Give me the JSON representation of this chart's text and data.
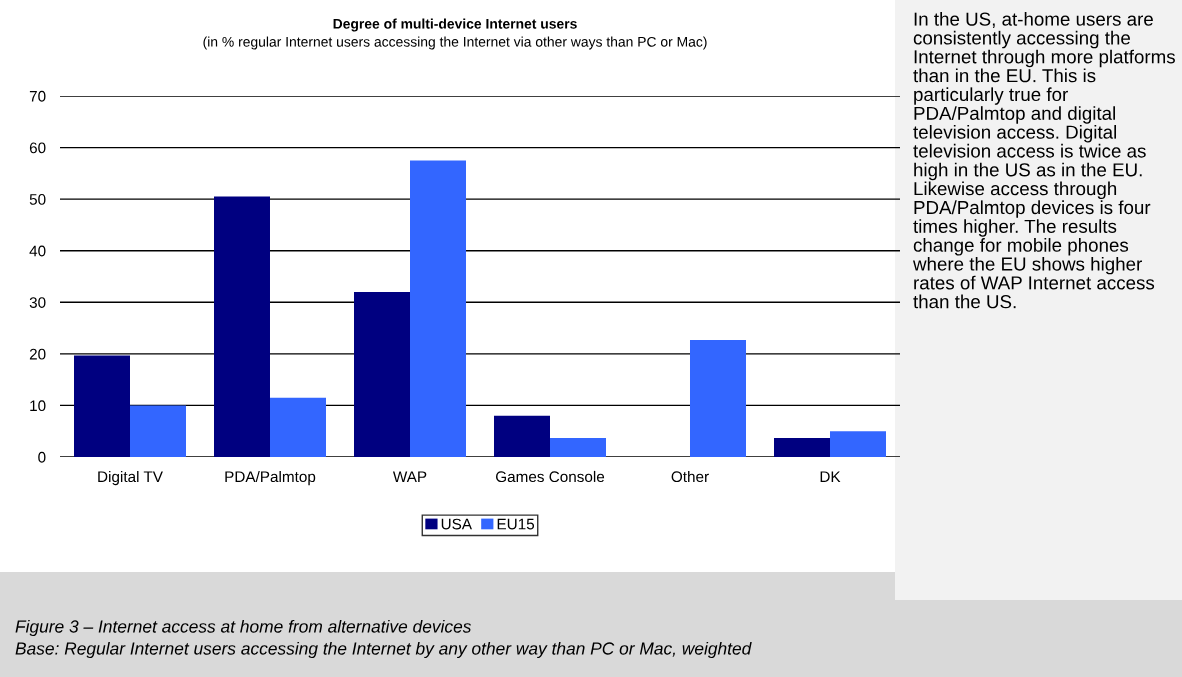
{
  "chart_data": {
    "type": "bar",
    "title": "Degree of multi-device Internet users",
    "subtitle": "(in % regular Internet users accessing the Internet via other ways than PC or Mac)",
    "categories": [
      "Digital TV",
      "PDA/Palmtop",
      "WAP",
      "Games Console",
      "Other",
      "DK"
    ],
    "series": [
      {
        "name": "USA",
        "color": "#000080",
        "values": [
          19.7,
          50.5,
          32,
          8,
          0,
          3.7
        ]
      },
      {
        "name": "EU15",
        "color": "#3366ff",
        "values": [
          10,
          11.5,
          57.5,
          3.7,
          22.7,
          5
        ]
      }
    ],
    "ylim": [
      0,
      70
    ],
    "yticks": [
      0,
      10,
      20,
      30,
      40,
      50,
      60,
      70
    ],
    "grid": "y",
    "legend": "bottom",
    "annotations": [
      "In the US, at-home users are consistently accessing the Internet through more platforms than in the EU. This is particularly true for PDA/Palmtop and digital television access. Digital television access is twice as high in the US as in the EU. Likewise access through PDA/Palmtop devices is four times higher. The results change for mobile phones where the EU shows higher rates of WAP Internet access than the US.",
      "Figure 3 – Internet access at home from alternative devices",
      "Base: Regular Internet users accessing the Internet by any other way than PC or Mac, weighted"
    ]
  }
}
